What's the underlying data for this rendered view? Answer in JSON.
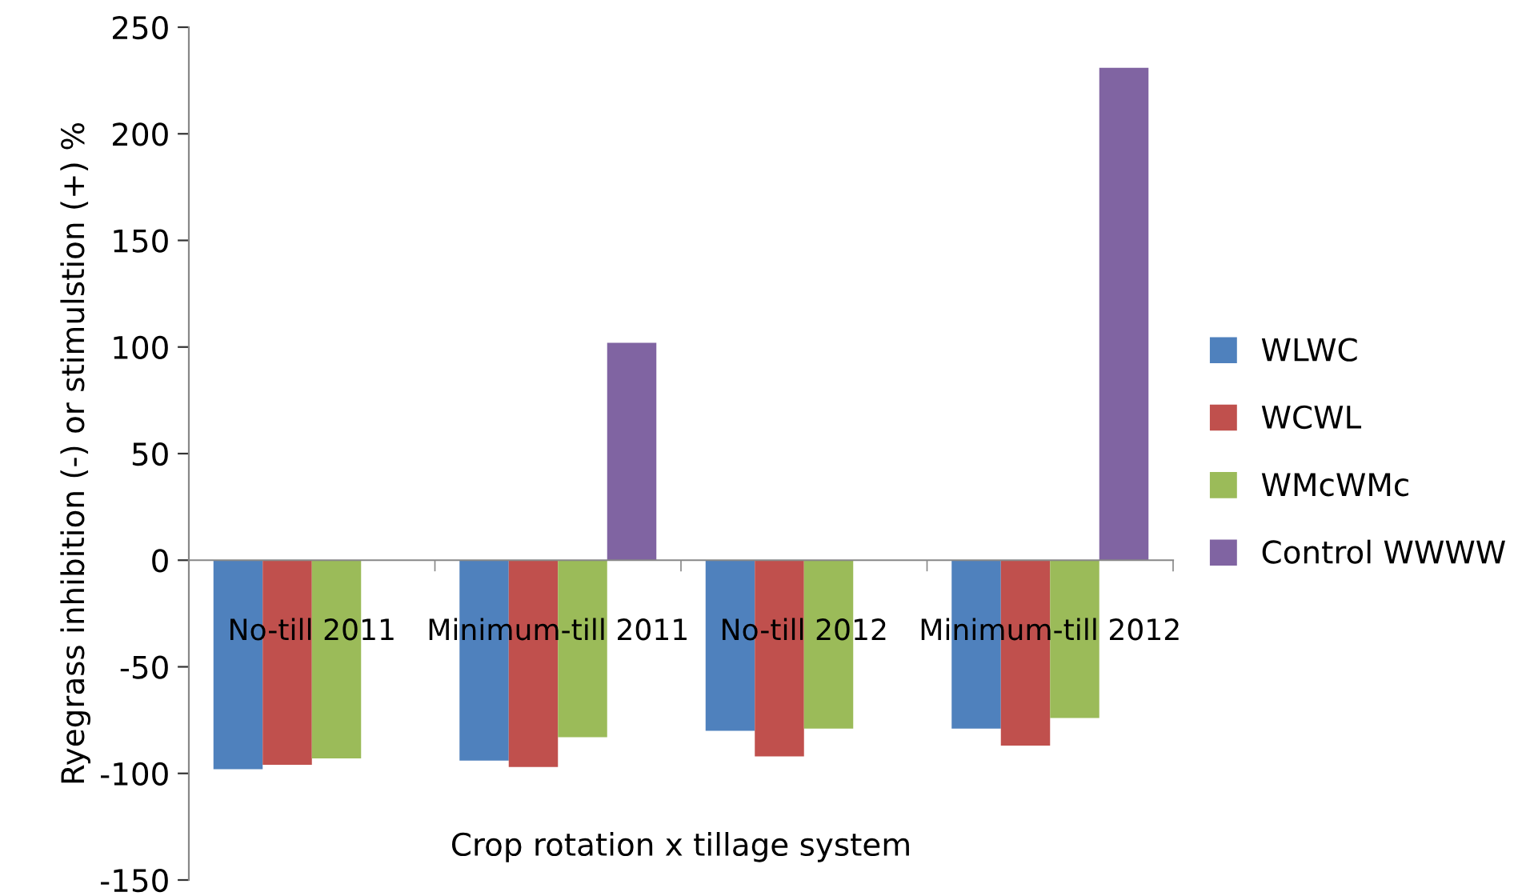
{
  "chart_data": {
    "type": "bar",
    "xlabel": "Crop rotation x tillage system",
    "ylabel": "Ryegrass inhibition (-) or stimulstion (+) %",
    "categories": [
      "No-till 2011",
      "Minimum-till 2011",
      "No-till 2012",
      "Minimum-till 2012"
    ],
    "series": [
      {
        "name": "WLWC",
        "color": "#4f81bd",
        "values": [
          -98,
          -94,
          -80,
          -79
        ]
      },
      {
        "name": "WCWL",
        "color": "#c0504d",
        "values": [
          -96,
          -97,
          -92,
          -87
        ]
      },
      {
        "name": "WMcWMc",
        "color": "#9bbb59",
        "values": [
          -93,
          -83,
          -79,
          -74
        ]
      },
      {
        "name": "Control WWWW",
        "color": "#8064a2",
        "values": [
          null,
          102,
          null,
          231
        ]
      }
    ],
    "ylim": [
      -150,
      250
    ],
    "yticks": [
      -150,
      -100,
      -50,
      0,
      50,
      100,
      150,
      200,
      250
    ],
    "grid": false,
    "legend": "right"
  }
}
